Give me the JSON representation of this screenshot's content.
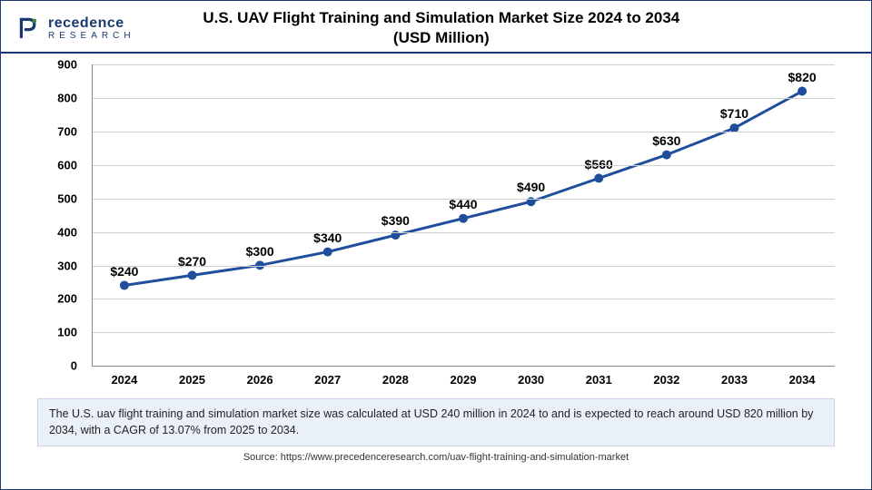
{
  "logo": {
    "main": "recedence",
    "sub": "RESEARCH"
  },
  "title_line1": "U.S. UAV Flight Training and Simulation Market Size 2024 to 2034",
  "title_line2": "(USD Million)",
  "chart": {
    "type": "line",
    "categories": [
      "2024",
      "2025",
      "2026",
      "2027",
      "2028",
      "2029",
      "2030",
      "2031",
      "2032",
      "2033",
      "2034"
    ],
    "values": [
      240,
      270,
      300,
      340,
      390,
      440,
      490,
      560,
      630,
      710,
      820
    ],
    "value_labels": [
      "$240",
      "$270",
      "$300",
      "$340",
      "$390",
      "$440",
      "$490",
      "$560",
      "$630",
      "$710",
      "$820"
    ],
    "ylim": [
      0,
      900
    ],
    "ytick_step": 100,
    "line_color": "#1f4e9c",
    "line_width": 3,
    "marker_color": "#1f4e9c",
    "marker_radius": 5,
    "grid_color": "#d0d0d0",
    "background_color": "#ffffff",
    "axis_label_fontsize": 13,
    "data_label_fontsize": 14,
    "font_weight": "bold"
  },
  "footer_text": "The U.S. uav flight training and simulation market size was calculated at USD 240 million in 2024 to and is expected to reach around USD 820 million by 2034, with a CAGR of 13.07% from 2025 to 2034.",
  "source_text": "Source: https://www.precedenceresearch.com/uav-flight-training-and-simulation-market"
}
